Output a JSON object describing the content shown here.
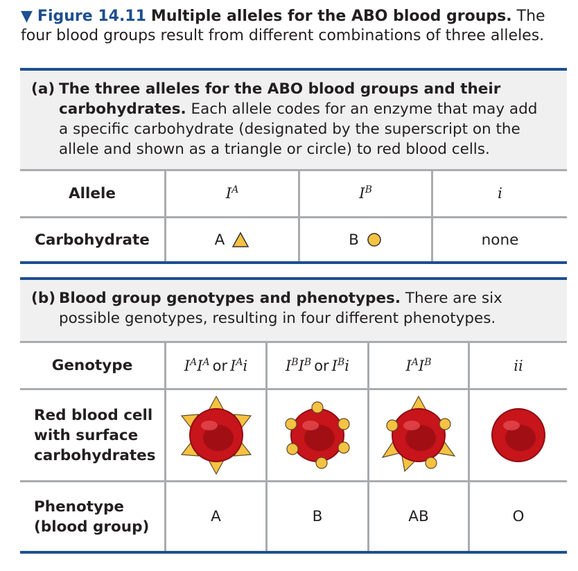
{
  "caption": {
    "marker": "▼",
    "figure_number": "Figure 14.11",
    "title": "Multiple alleles for the ABO blood groups.",
    "text": "The four blood groups result from different combinations of three alleles."
  },
  "panel_a": {
    "label": "(a)",
    "heading": "The three alleles for the ABO blood groups and their carbohydrates.",
    "text": "Each allele codes for an enzyme that may add a specific carbohydrate (designated by the superscript on the allele and shown as a triangle or circle) to red blood cells.",
    "row_labels": [
      "Allele",
      "Carbohydrate"
    ],
    "alleles": [
      {
        "base": "I",
        "sup": "A"
      },
      {
        "base": "I",
        "sup": "B"
      },
      {
        "base": "i",
        "sup": ""
      }
    ],
    "carbohydrates": [
      {
        "text": "A",
        "shape": "triangle-icon"
      },
      {
        "text": "B",
        "shape": "circle-icon"
      },
      {
        "text": "none",
        "shape": ""
      }
    ]
  },
  "panel_b": {
    "label": "(b)",
    "heading": "Blood group genotypes and phenotypes.",
    "text": "There are six possible genotypes, resulting in four different phenotypes.",
    "row_labels": [
      "Genotype",
      "Red blood cell with surface carbohydrates",
      "Phenotype (blood group)"
    ],
    "genotypes": [
      {
        "parts": [
          [
            "I",
            "A"
          ],
          [
            "I",
            "A"
          ]
        ],
        "or": "or",
        "alt": [
          [
            "I",
            "A"
          ],
          [
            "i",
            ""
          ]
        ]
      },
      {
        "parts": [
          [
            "I",
            "B"
          ],
          [
            "I",
            "B"
          ]
        ],
        "or": "or",
        "alt": [
          [
            "I",
            "B"
          ],
          [
            "i",
            ""
          ]
        ]
      },
      {
        "parts": [
          [
            "I",
            "A"
          ],
          [
            "I",
            "B"
          ]
        ],
        "or": "",
        "alt": []
      },
      {
        "parts": [
          [
            "i",
            ""
          ],
          [
            "i",
            ""
          ]
        ],
        "or": "",
        "alt": []
      }
    ],
    "cells": [
      "triangles-only",
      "circles-only",
      "triangles-and-circles",
      "no-carbohydrate"
    ],
    "phenotypes": [
      "A",
      "B",
      "AB",
      "O"
    ]
  },
  "colors": {
    "accent": "#1d4f91",
    "panel_bg": "#f0f0f1",
    "grid": "#a9abae",
    "cell_red": "#d4141c",
    "carb_yellow": "#f5c242"
  }
}
